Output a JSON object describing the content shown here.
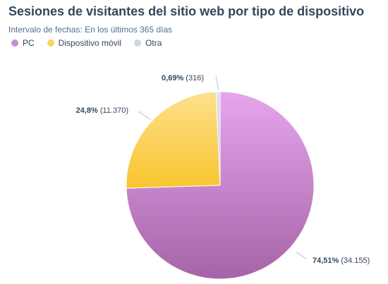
{
  "chart_data": {
    "type": "pie",
    "title": "Sesiones de visitantes del sitio web por tipo de dispositivo",
    "subtitle": "Intervalo de fechas: En los últimos 365 días",
    "legend_position": "top-left",
    "slices": [
      {
        "name": "PC",
        "value": 34155,
        "percent_label": "74,51%",
        "count_label": "34.155",
        "color": "#c98bd6"
      },
      {
        "name": "Dispositivo móvil",
        "value": 11370,
        "percent_label": "24,8%",
        "count_label": "11.370",
        "color": "#fcd462"
      },
      {
        "name": "Otra",
        "value": 316,
        "percent_label": "0,69%",
        "count_label": "316",
        "color": "#cbd6e2"
      }
    ]
  }
}
